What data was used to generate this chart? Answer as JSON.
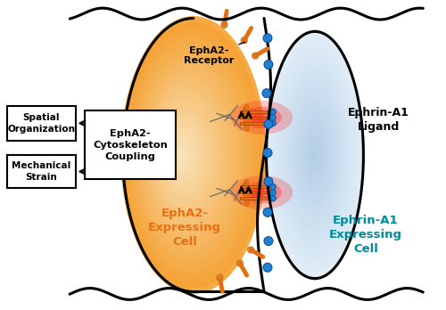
{
  "bg_color": "#ffffff",
  "orange_fill": "#F5A030",
  "orange_gradient_light": "#FDE8C0",
  "blue_fill": "#B8E0F0",
  "blue_gradient_light": "#E0F4FC",
  "orange_label_color": "#E87010",
  "teal_label_color": "#008B9A",
  "black": "#000000",
  "receptor_orange": "#E07010",
  "ligand_blue": "#2080D0",
  "red_glow": "#FF3030",
  "actin_gray": "#555555",
  "cell1_label": "EphA2-\nExpressing\nCell",
  "cell2_label": "Ephrin-A1\nExpressing\nCell",
  "receptor_label": "EphA2-\nReceptor",
  "ligand_label": "Ephrin-A1\nLigand",
  "box1_label": "EphA2-\nCytoskeleton\nCoupling",
  "box2_label": "Spatial\nOrganization",
  "box3_label": "Mechanical\nStrain",
  "figsize": [
    5.0,
    3.48
  ],
  "dpi": 100
}
